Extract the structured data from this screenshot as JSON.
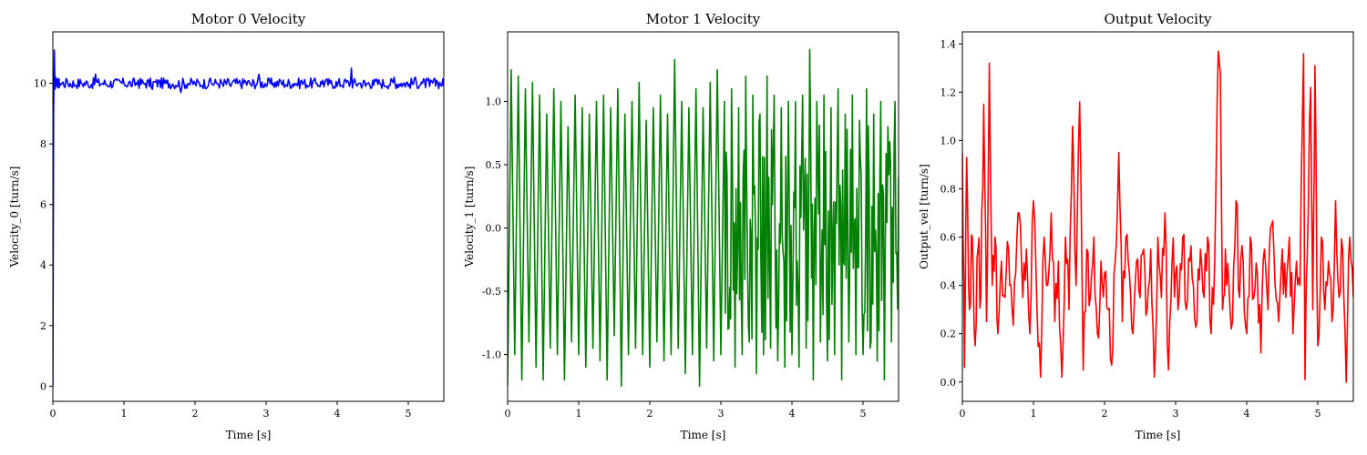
{
  "chart_data": [
    {
      "type": "line",
      "title": "Motor 0 Velocity",
      "xlabel": "Time [s]",
      "ylabel": "Velocity_0 [turn/s]",
      "xlim": [
        0,
        5.5
      ],
      "ylim": [
        -0.5,
        11.7
      ],
      "xticks": [
        0,
        1,
        2,
        3,
        4,
        5
      ],
      "yticks": [
        0,
        2,
        4,
        6,
        8,
        10
      ],
      "grid": false,
      "series": [
        {
          "color": "#0000ff",
          "pattern": "steady",
          "x": [
            0,
            0.01,
            0.02,
            0.03,
            0.04,
            0.05,
            0.1,
            0.2,
            0.3,
            0.4,
            0.5,
            0.6,
            0.7,
            0.8,
            0.9,
            1.0,
            1.1,
            1.2,
            1.3,
            1.4,
            1.5,
            1.6,
            1.7,
            1.8,
            1.9,
            2.0,
            2.1,
            2.2,
            2.3,
            2.4,
            2.5,
            2.6,
            2.7,
            2.8,
            2.9,
            3.0,
            3.1,
            3.2,
            3.3,
            3.4,
            3.5,
            3.6,
            3.7,
            3.8,
            3.9,
            4.0,
            4.1,
            4.2,
            4.3,
            4.4,
            4.5,
            4.6,
            4.7,
            4.8,
            4.9,
            5.0,
            5.1,
            5.2,
            5.3,
            5.4,
            5.5
          ],
          "y": [
            0,
            9.0,
            11.1,
            9.8,
            10.2,
            9.9,
            10.0,
            10.1,
            9.9,
            10.0,
            9.9,
            10.3,
            10.0,
            9.9,
            10.1,
            10.0,
            9.9,
            10.1,
            10.0,
            9.8,
            10.1,
            10.0,
            9.9,
            9.7,
            10.0,
            10.0,
            9.9,
            10.1,
            10.0,
            9.9,
            9.9,
            10.0,
            10.1,
            9.9,
            10.3,
            9.9,
            10.0,
            10.1,
            9.9,
            10.0,
            10.1,
            9.9,
            10.0,
            10.1,
            10.0,
            9.9,
            10.1,
            10.5,
            10.0,
            9.9,
            10.1,
            10.0,
            9.9,
            10.2,
            10.0,
            9.9,
            10.2,
            10.0,
            9.9,
            10.1,
            9.9
          ]
        }
      ]
    },
    {
      "type": "line",
      "title": "Motor 1 Velocity",
      "xlabel": "Time [s]",
      "ylabel": "Velocity_1 [turn/s]",
      "xlim": [
        0,
        5.5
      ],
      "ylim": [
        -1.37,
        1.55
      ],
      "xticks": [
        0,
        1,
        2,
        3,
        4,
        5
      ],
      "yticks": [
        -1.0,
        -0.5,
        0.0,
        0.5,
        1.0
      ],
      "grid": false,
      "series": [
        {
          "color": "#008000",
          "pattern": "oscillating",
          "x": [
            0,
            0.05,
            0.1,
            0.15,
            0.2,
            0.25,
            0.3,
            0.35,
            0.4,
            0.45,
            0.5,
            0.55,
            0.6,
            0.65,
            0.7,
            0.75,
            0.8,
            0.85,
            0.9,
            0.95,
            1.0,
            1.05,
            1.1,
            1.15,
            1.2,
            1.25,
            1.3,
            1.35,
            1.4,
            1.45,
            1.5,
            1.55,
            1.6,
            1.65,
            1.7,
            1.75,
            1.8,
            1.85,
            1.9,
            1.95,
            2.0,
            2.05,
            2.1,
            2.15,
            2.2,
            2.25,
            2.3,
            2.35,
            2.4,
            2.45,
            2.5,
            2.55,
            2.6,
            2.65,
            2.7,
            2.75,
            2.8,
            2.85,
            2.9,
            2.95,
            3.0,
            3.05,
            3.1,
            3.15,
            3.2,
            3.25,
            3.3,
            3.35,
            3.4,
            3.45,
            3.5,
            3.55,
            3.6,
            3.65,
            3.7,
            3.75,
            3.8,
            3.85,
            3.9,
            3.95,
            4.0,
            4.05,
            4.1,
            4.15,
            4.2,
            4.25,
            4.3,
            4.35,
            4.4,
            4.45,
            4.5,
            4.55,
            4.6,
            4.65,
            4.7,
            4.75,
            4.8,
            4.85,
            4.9,
            4.95,
            5.0,
            5.05,
            5.1,
            5.15,
            5.2,
            5.25,
            5.3,
            5.35,
            5.4,
            5.45,
            5.5
          ],
          "y": [
            -1.25,
            1.25,
            -1.0,
            1.2,
            -1.2,
            1.1,
            -0.9,
            1.15,
            -1.1,
            1.05,
            -1.2,
            0.9,
            -0.95,
            1.1,
            -1.0,
            1.0,
            -1.2,
            0.8,
            -0.9,
            1.05,
            -1.0,
            0.95,
            -1.1,
            0.9,
            -0.95,
            1.0,
            -1.05,
            1.05,
            -1.2,
            0.95,
            -0.85,
            1.1,
            -1.25,
            0.9,
            -1.0,
            1.0,
            -0.95,
            1.15,
            -1.0,
            0.85,
            -1.1,
            0.95,
            -0.9,
            1.05,
            -1.05,
            0.9,
            -1.0,
            1.33,
            -0.95,
            1.0,
            -1.15,
            0.95,
            -1.0,
            1.1,
            -1.25,
            0.95,
            -0.95,
            1.15,
            -1.05,
            1.25,
            -1.0,
            1.0,
            -0.8,
            1.1,
            -1.1,
            0.95,
            -1.0,
            1.2,
            -0.9,
            1.05,
            -1.15,
            0.9,
            -1.0,
            1.2,
            -0.95,
            1.05,
            -1.05,
            0.95,
            -1.1,
            1.0,
            -1.0,
            1.0,
            -1.1,
            1.05,
            -0.95,
            1.41,
            -1.2,
            1.0,
            -0.9,
            1.05,
            -1.05,
            0.95,
            -1.0,
            1.1,
            -1.2,
            0.9,
            -0.9,
            1.05,
            -1.0,
            0.85,
            -1.0,
            1.1,
            -0.95,
            0.9,
            -1.05,
            1.0,
            -1.2,
            0.8,
            -0.9,
            1.0,
            0.4
          ]
        }
      ]
    },
    {
      "type": "line",
      "title": "Output Velocity",
      "xlabel": "Time [s]",
      "ylabel": "Output_vel [turn/s]",
      "xlim": [
        0,
        5.5
      ],
      "ylim": [
        -0.08,
        1.45
      ],
      "xticks": [
        0,
        1,
        2,
        3,
        4,
        5
      ],
      "yticks": [
        0.0,
        0.2,
        0.4,
        0.6,
        0.8,
        1.0,
        1.2,
        1.4
      ],
      "grid": false,
      "series": [
        {
          "color": "#ff0000",
          "pattern": "noisy",
          "x": [
            0,
            0.03,
            0.06,
            0.1,
            0.14,
            0.18,
            0.22,
            0.26,
            0.3,
            0.34,
            0.38,
            0.42,
            0.46,
            0.5,
            0.55,
            0.6,
            0.65,
            0.7,
            0.75,
            0.8,
            0.85,
            0.9,
            0.95,
            1.0,
            1.05,
            1.1,
            1.15,
            1.2,
            1.25,
            1.3,
            1.35,
            1.4,
            1.45,
            1.5,
            1.55,
            1.6,
            1.65,
            1.7,
            1.75,
            1.8,
            1.85,
            1.9,
            1.95,
            2.0,
            2.05,
            2.1,
            2.15,
            2.2,
            2.25,
            2.3,
            2.35,
            2.4,
            2.45,
            2.5,
            2.55,
            2.6,
            2.65,
            2.7,
            2.75,
            2.8,
            2.85,
            2.9,
            2.95,
            3.0,
            3.05,
            3.1,
            3.15,
            3.2,
            3.25,
            3.3,
            3.35,
            3.4,
            3.45,
            3.5,
            3.55,
            3.6,
            3.63,
            3.66,
            3.7,
            3.75,
            3.8,
            3.85,
            3.9,
            3.95,
            4.0,
            4.05,
            4.1,
            4.15,
            4.2,
            4.25,
            4.3,
            4.35,
            4.4,
            4.45,
            4.5,
            4.55,
            4.6,
            4.65,
            4.7,
            4.75,
            4.8,
            4.82,
            4.85,
            4.9,
            4.93,
            4.96,
            5.0,
            5.05,
            5.1,
            5.15,
            5.2,
            5.25,
            5.3,
            5.35,
            5.4,
            5.45,
            5.5
          ],
          "y": [
            0.95,
            0.06,
            0.93,
            0.3,
            0.6,
            0.15,
            0.55,
            0.35,
            1.15,
            0.25,
            1.32,
            0.4,
            0.6,
            0.2,
            0.5,
            0.35,
            0.55,
            0.3,
            0.45,
            0.7,
            0.35,
            0.55,
            0.2,
            0.75,
            0.3,
            0.02,
            0.6,
            0.4,
            0.7,
            0.25,
            0.5,
            0.02,
            0.6,
            0.3,
            1.06,
            0.4,
            1.16,
            0.05,
            0.55,
            0.35,
            0.6,
            0.2,
            0.5,
            0.45,
            0.3,
            0.07,
            0.5,
            0.95,
            0.25,
            0.6,
            0.45,
            0.2,
            0.5,
            0.35,
            0.55,
            0.3,
            0.55,
            0.02,
            0.6,
            0.35,
            0.7,
            0.05,
            0.5,
            0.45,
            0.35,
            0.6,
            0.3,
            0.5,
            0.4,
            0.25,
            0.55,
            0.35,
            0.6,
            0.2,
            0.5,
            1.37,
            1.28,
            0.3,
            0.55,
            0.4,
            0.25,
            0.75,
            0.35,
            0.5,
            0.2,
            0.6,
            0.35,
            0.45,
            0.12,
            0.55,
            0.3,
            0.65,
            0.4,
            0.25,
            0.55,
            0.35,
            0.6,
            0.2,
            0.5,
            0.4,
            1.36,
            0.01,
            0.5,
            1.22,
            0.3,
            1.31,
            0.15,
            0.6,
            0.3,
            0.5,
            0.25,
            0.75,
            0.35,
            0.55,
            0.0,
            0.6,
            0.35
          ]
        }
      ]
    }
  ]
}
